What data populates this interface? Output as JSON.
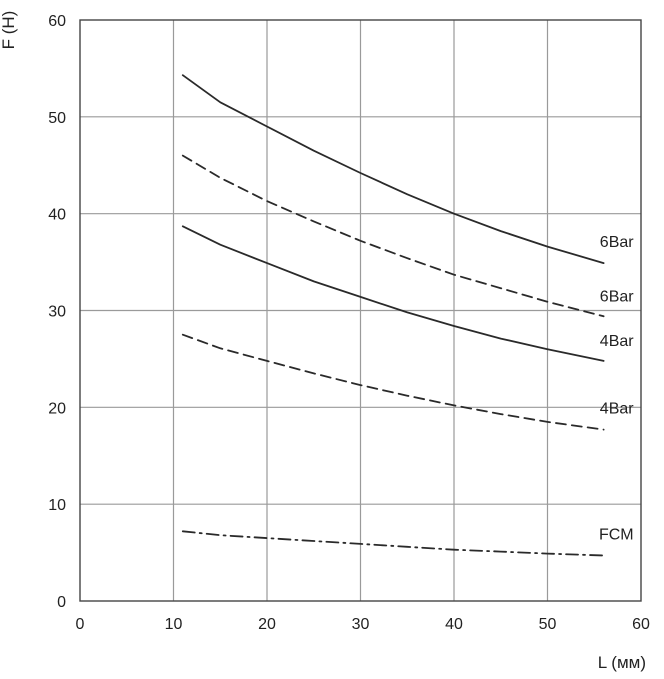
{
  "chart_data": {
    "type": "line",
    "title": "",
    "ylabel": "F (H)",
    "xlabel": "L (мм)",
    "xlim": [
      0,
      60
    ],
    "ylim": [
      0,
      60
    ],
    "x_ticks": [
      0,
      10,
      20,
      30,
      40,
      50,
      60
    ],
    "y_ticks": [
      0,
      10,
      20,
      30,
      40,
      50,
      60
    ],
    "grid": true,
    "legend": "inline labels at line ends",
    "colors": {
      "line": "#2a2a2a",
      "grid": "#9a9a9a",
      "frame": "#444444"
    },
    "series": [
      {
        "name": "6Bar",
        "style": "solid",
        "points": [
          [
            11,
            54.3
          ],
          [
            15,
            51.5
          ],
          [
            20,
            49.0
          ],
          [
            25,
            46.5
          ],
          [
            30,
            44.2
          ],
          [
            35,
            42.0
          ],
          [
            40,
            40.0
          ],
          [
            45,
            38.2
          ],
          [
            50,
            36.6
          ],
          [
            56,
            34.9
          ]
        ]
      },
      {
        "name": "6Bar",
        "style": "dashed",
        "points": [
          [
            11,
            46.0
          ],
          [
            15,
            43.7
          ],
          [
            20,
            41.3
          ],
          [
            25,
            39.2
          ],
          [
            30,
            37.2
          ],
          [
            35,
            35.4
          ],
          [
            40,
            33.7
          ],
          [
            45,
            32.3
          ],
          [
            50,
            30.9
          ],
          [
            56,
            29.4
          ]
        ]
      },
      {
        "name": "4Bar",
        "style": "solid",
        "points": [
          [
            11,
            38.7
          ],
          [
            15,
            36.8
          ],
          [
            20,
            34.9
          ],
          [
            25,
            33.0
          ],
          [
            30,
            31.4
          ],
          [
            35,
            29.8
          ],
          [
            40,
            28.4
          ],
          [
            45,
            27.1
          ],
          [
            50,
            26.0
          ],
          [
            56,
            24.8
          ]
        ]
      },
      {
        "name": "4Bar",
        "style": "dashed",
        "points": [
          [
            11,
            27.5
          ],
          [
            15,
            26.1
          ],
          [
            20,
            24.8
          ],
          [
            25,
            23.5
          ],
          [
            30,
            22.3
          ],
          [
            35,
            21.2
          ],
          [
            40,
            20.2
          ],
          [
            45,
            19.3
          ],
          [
            50,
            18.5
          ],
          [
            56,
            17.7
          ]
        ]
      },
      {
        "name": "FCM",
        "style": "dashdot",
        "points": [
          [
            11,
            7.2
          ],
          [
            15,
            6.8
          ],
          [
            20,
            6.5
          ],
          [
            25,
            6.2
          ],
          [
            30,
            5.9
          ],
          [
            35,
            5.6
          ],
          [
            40,
            5.3
          ],
          [
            45,
            5.1
          ],
          [
            50,
            4.9
          ],
          [
            56,
            4.7
          ]
        ]
      }
    ]
  }
}
